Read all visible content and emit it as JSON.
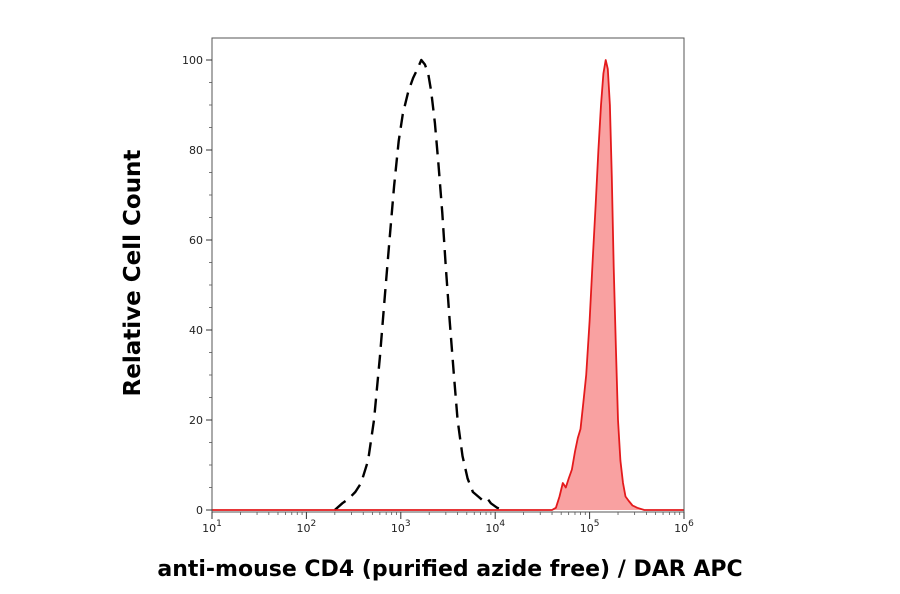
{
  "chart_data": {
    "type": "area",
    "xlabel": "anti-mouse CD4 (purified azide free) / DAR APC",
    "ylabel": "Relative Cell Count",
    "x_scale": "log",
    "xlim": [
      10,
      1000000
    ],
    "ylim": [
      0,
      100
    ],
    "x_ticks": [
      {
        "base": "10",
        "exp": "1"
      },
      {
        "base": "10",
        "exp": "2"
      },
      {
        "base": "10",
        "exp": "3"
      },
      {
        "base": "10",
        "exp": "4"
      },
      {
        "base": "10",
        "exp": "5"
      },
      {
        "base": "10",
        "exp": "6"
      }
    ],
    "y_ticks": [
      "0",
      "20",
      "40",
      "60",
      "80",
      "100"
    ],
    "grid": false,
    "legend": "none",
    "series": [
      {
        "style": "dashed",
        "color": "#000000",
        "fill": "none",
        "points": [
          [
            200,
            0
          ],
          [
            240,
            1.5
          ],
          [
            280,
            2.5
          ],
          [
            330,
            4
          ],
          [
            380,
            6
          ],
          [
            450,
            11
          ],
          [
            520,
            20
          ],
          [
            600,
            34
          ],
          [
            680,
            48
          ],
          [
            760,
            60
          ],
          [
            850,
            72
          ],
          [
            950,
            82
          ],
          [
            1050,
            88
          ],
          [
            1200,
            93
          ],
          [
            1350,
            96
          ],
          [
            1500,
            98
          ],
          [
            1650,
            100
          ],
          [
            1800,
            99
          ],
          [
            1950,
            97
          ],
          [
            2100,
            93
          ],
          [
            2300,
            86
          ],
          [
            2500,
            77
          ],
          [
            2750,
            66
          ],
          [
            3000,
            54
          ],
          [
            3300,
            42
          ],
          [
            3650,
            30
          ],
          [
            4000,
            20
          ],
          [
            4500,
            12
          ],
          [
            5100,
            7
          ],
          [
            5800,
            4
          ],
          [
            6600,
            3
          ],
          [
            7500,
            2
          ],
          [
            8300,
            2.5
          ],
          [
            9000,
            1.5
          ],
          [
            10500,
            0.5
          ],
          [
            12000,
            0
          ]
        ]
      },
      {
        "style": "solid",
        "color": "#e41a1c",
        "fill": "#f9a1a1",
        "points": [
          [
            10,
            0
          ],
          [
            40000,
            0
          ],
          [
            44000,
            0.5
          ],
          [
            48000,
            3
          ],
          [
            52000,
            6
          ],
          [
            56000,
            5
          ],
          [
            60000,
            7
          ],
          [
            65000,
            9
          ],
          [
            70000,
            13
          ],
          [
            75000,
            16
          ],
          [
            80000,
            18
          ],
          [
            86000,
            24
          ],
          [
            92000,
            30
          ],
          [
            100000,
            42
          ],
          [
            108000,
            56
          ],
          [
            116000,
            68
          ],
          [
            124000,
            80
          ],
          [
            132000,
            90
          ],
          [
            140000,
            97
          ],
          [
            148000,
            100
          ],
          [
            156000,
            98
          ],
          [
            164000,
            90
          ],
          [
            172000,
            74
          ],
          [
            180000,
            54
          ],
          [
            190000,
            36
          ],
          [
            200000,
            20
          ],
          [
            212000,
            11
          ],
          [
            226000,
            6
          ],
          [
            240000,
            3
          ],
          [
            260000,
            2
          ],
          [
            285000,
            1
          ],
          [
            320000,
            0.5
          ],
          [
            380000,
            0
          ],
          [
            1000000,
            0
          ]
        ]
      }
    ]
  }
}
